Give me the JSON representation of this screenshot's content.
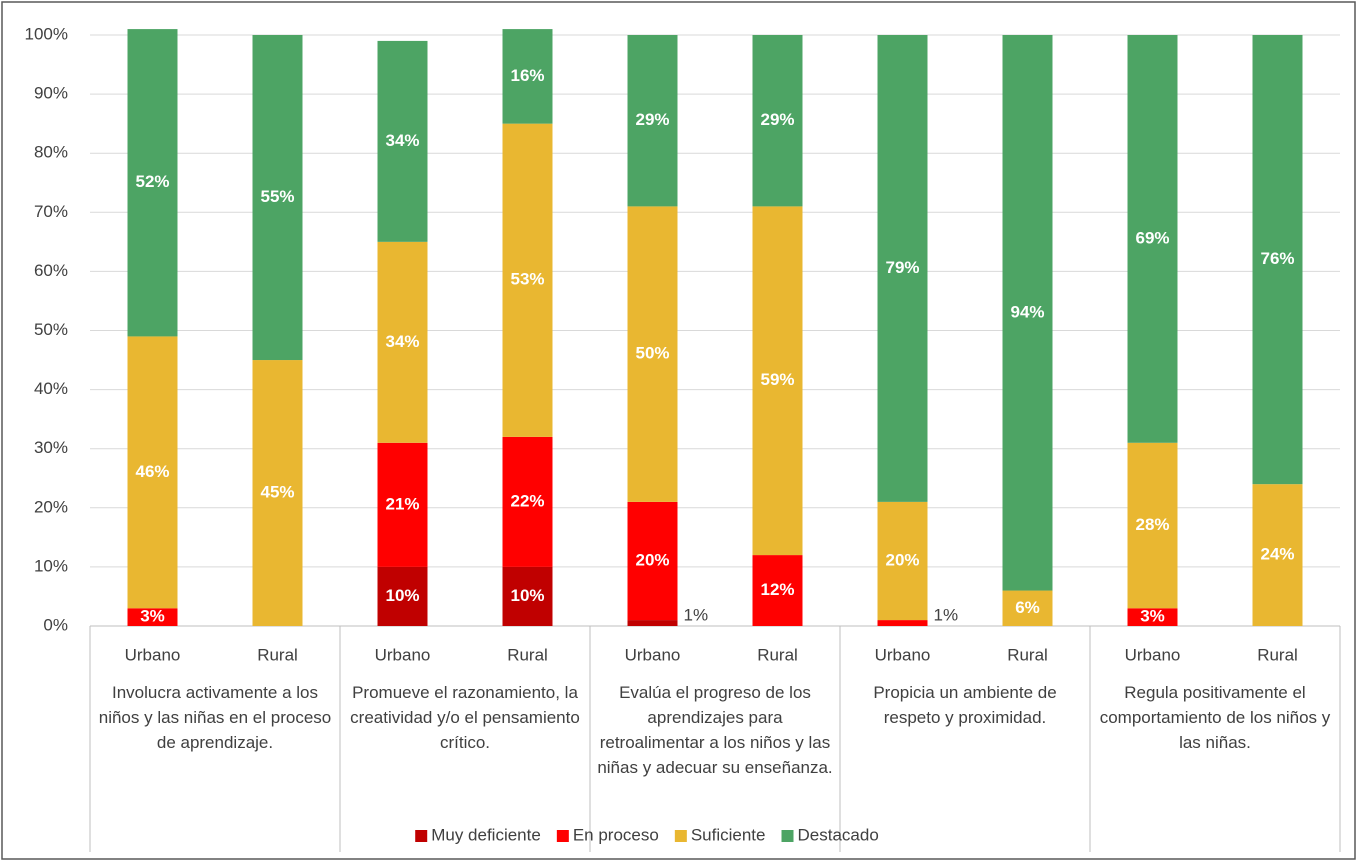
{
  "chart_data": {
    "type": "bar",
    "stacked": true,
    "categories": [
      "Urbano",
      "Rural",
      "Urbano",
      "Rural",
      "Urbano",
      "Rural",
      "Urbano",
      "Rural",
      "Urbano",
      "Rural"
    ],
    "group_labels": [
      "Involucra activamente a los niños y las niñas en el proceso de aprendizaje.",
      "Promueve el razonamiento, la creatividad y/o el pensamiento crítico.",
      "Evalúa el progreso de los aprendizajes para retroalimentar a los niños y las niñas y adecuar su enseñanza.",
      "Propicia un ambiente de respeto y proximidad.",
      "Regula positivamente el comportamiento de los niños y las niñas."
    ],
    "series": [
      {
        "name": "Muy deficiente",
        "color": "#c00000",
        "values": [
          null,
          null,
          10,
          10,
          1,
          null,
          null,
          null,
          null,
          null
        ],
        "value_labels": [
          null,
          null,
          "10%",
          "10%",
          "1%",
          null,
          null,
          null,
          null,
          null
        ]
      },
      {
        "name": "En proceso",
        "color": "#ff0000",
        "values": [
          3,
          null,
          21,
          22,
          20,
          12,
          1,
          null,
          3,
          null
        ],
        "value_labels": [
          "3%",
          null,
          "21%",
          "22%",
          "20%",
          "12%",
          "1%",
          null,
          "3%",
          null
        ]
      },
      {
        "name": "Suficiente",
        "color": "#e9b731",
        "values": [
          46,
          45,
          34,
          53,
          50,
          59,
          20,
          6,
          28,
          24
        ],
        "value_labels": [
          "46%",
          "45%",
          "34%",
          "53%",
          "50%",
          "59%",
          "20%",
          "6%",
          "28%",
          "24%"
        ]
      },
      {
        "name": "Destacado",
        "color": "#4da464",
        "values": [
          52,
          55,
          34,
          16,
          29,
          29,
          79,
          94,
          69,
          76
        ],
        "value_labels": [
          "52%",
          "55%",
          "34%",
          "16%",
          "29%",
          "29%",
          "79%",
          "94%",
          "69%",
          "76%"
        ]
      }
    ],
    "ylim": [
      0,
      100
    ],
    "yticks": [
      {
        "value": 0,
        "label": "0%"
      },
      {
        "value": 10,
        "label": "10%"
      },
      {
        "value": 20,
        "label": "20%"
      },
      {
        "value": 30,
        "label": "30%"
      },
      {
        "value": 40,
        "label": "40%"
      },
      {
        "value": 50,
        "label": "50%"
      },
      {
        "value": 60,
        "label": "60%"
      },
      {
        "value": 70,
        "label": "70%"
      },
      {
        "value": 80,
        "label": "80%"
      },
      {
        "value": 90,
        "label": "90%"
      },
      {
        "value": 100,
        "label": "100%"
      }
    ],
    "grid": true,
    "legend": "bottom"
  }
}
